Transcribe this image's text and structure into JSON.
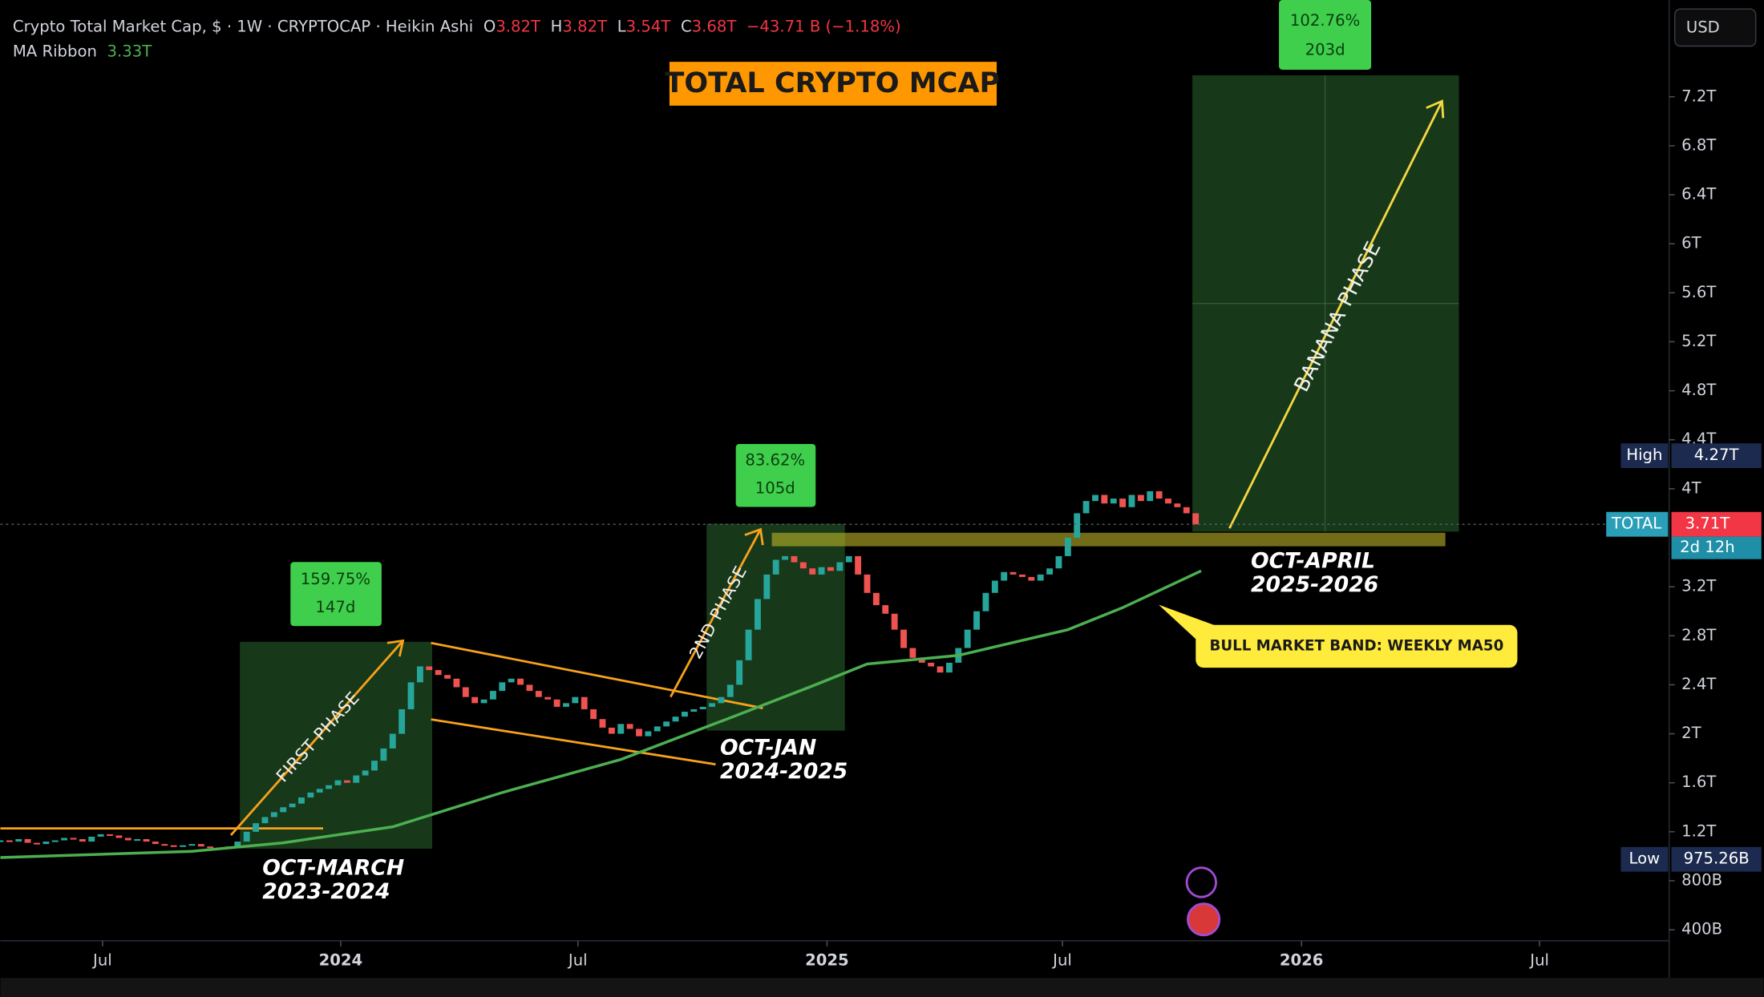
{
  "header": {
    "symbol": "Crypto Total Market Cap, $ · 1W · CRYPTOCAP · Heikin Ashi",
    "ohlc": [
      {
        "key": "O",
        "value": "3.82T"
      },
      {
        "key": "H",
        "value": "3.82T"
      },
      {
        "key": "L",
        "value": "3.54T"
      },
      {
        "key": "C",
        "value": "3.68T"
      }
    ],
    "change": "−43.71 B (−1.18%)",
    "indicator_value": "3.33T",
    "currency": "USD"
  },
  "chart_data": {
    "type": "candlestick",
    "title": "TOTAL CRYPTO MCAP",
    "x": [
      0,
      1,
      2,
      3,
      4,
      5,
      6,
      7,
      8,
      9,
      10,
      11,
      12,
      13,
      14,
      15,
      16,
      17,
      18,
      19,
      20,
      21,
      22,
      23,
      24,
      25,
      26,
      27,
      28,
      29,
      30,
      31,
      32,
      33,
      34,
      35,
      36,
      37,
      38,
      39,
      40,
      41,
      42,
      43,
      44,
      45,
      46,
      47,
      48,
      49,
      50,
      51,
      52,
      53,
      54,
      55,
      56,
      57,
      58,
      59,
      60,
      61,
      62,
      63,
      64,
      65,
      66,
      67,
      68,
      69,
      70,
      71,
      72,
      73,
      74,
      75,
      76,
      77,
      78,
      79,
      80,
      81,
      82,
      83,
      84,
      85,
      86,
      87,
      88,
      89,
      90,
      91,
      92,
      93,
      94,
      95,
      96,
      97,
      98,
      99,
      100,
      101,
      102,
      103,
      104,
      105,
      106,
      107,
      108,
      109,
      110,
      111,
      112,
      113,
      114,
      115,
      116,
      117,
      118,
      119,
      120,
      121,
      122,
      123,
      124,
      125,
      126,
      127,
      128,
      129,
      130,
      131
    ],
    "series": [
      {
        "name": "TOTAL",
        "color_up": "#26a69a",
        "color_down": "#ef5350",
        "values": [
          1.13,
          1.12,
          1.14,
          1.11,
          1.1,
          1.12,
          1.13,
          1.15,
          1.14,
          1.12,
          1.16,
          1.18,
          1.17,
          1.15,
          1.13,
          1.14,
          1.12,
          1.1,
          1.09,
          1.08,
          1.09,
          1.1,
          1.08,
          1.07,
          1.06,
          1.08,
          1.12,
          1.2,
          1.27,
          1.32,
          1.36,
          1.4,
          1.43,
          1.48,
          1.52,
          1.55,
          1.58,
          1.62,
          1.6,
          1.66,
          1.7,
          1.78,
          1.88,
          2.0,
          2.2,
          2.42,
          2.55,
          2.52,
          2.48,
          2.45,
          2.38,
          2.3,
          2.25,
          2.28,
          2.35,
          2.42,
          2.45,
          2.4,
          2.35,
          2.3,
          2.28,
          2.22,
          2.25,
          2.3,
          2.2,
          2.12,
          2.05,
          2.0,
          2.08,
          2.04,
          1.98,
          2.02,
          2.06,
          2.1,
          2.14,
          2.18,
          2.2,
          2.22,
          2.25,
          2.3,
          2.4,
          2.6,
          2.85,
          3.1,
          3.3,
          3.42,
          3.45,
          3.4,
          3.35,
          3.3,
          3.36,
          3.33,
          3.4,
          3.45,
          3.3,
          3.15,
          3.05,
          2.98,
          2.85,
          2.7,
          2.62,
          2.58,
          2.55,
          2.5,
          2.58,
          2.7,
          2.85,
          3.0,
          3.15,
          3.25,
          3.32,
          3.3,
          3.28,
          3.25,
          3.3,
          3.35,
          3.45,
          3.6,
          3.8,
          3.9,
          3.95,
          3.88,
          3.92,
          3.85,
          3.95,
          3.9,
          3.98,
          3.92,
          3.88,
          3.85,
          3.8,
          3.71
        ]
      },
      {
        "name": "MA Ribbon",
        "color": "#4caf50",
        "x": [
          0,
          21,
          31,
          43,
          55,
          68,
          80,
          89,
          95,
          105,
          117,
          123,
          131.6
        ],
        "values": [
          0.99,
          1.04,
          1.11,
          1.24,
          1.52,
          1.79,
          2.13,
          2.39,
          2.57,
          2.64,
          2.85,
          3.03,
          3.33
        ]
      }
    ],
    "xlim": [
      0,
      182.9
    ],
    "xticks": [
      {
        "value": 11.2,
        "label": "Jul"
      },
      {
        "value": 37.3,
        "label": "2024"
      },
      {
        "value": 63.3,
        "label": "Jul"
      },
      {
        "value": 90.6,
        "label": "2025"
      },
      {
        "value": 116.4,
        "label": "Jul"
      },
      {
        "value": 142.6,
        "label": "2026"
      },
      {
        "value": 168.7,
        "label": "Jul"
      }
    ],
    "ylim": [
      0.31,
      7.99
    ],
    "yticks": [
      {
        "value": 0.4,
        "label": "400B"
      },
      {
        "value": 0.8,
        "label": "800B"
      },
      {
        "value": 1.2,
        "label": "1.2T"
      },
      {
        "value": 1.6,
        "label": "1.6T"
      },
      {
        "value": 2,
        "label": "2T"
      },
      {
        "value": 2.4,
        "label": "2.4T"
      },
      {
        "value": 2.8,
        "label": "2.8T"
      },
      {
        "value": 3.2,
        "label": "3.2T"
      },
      {
        "value": 4,
        "label": "4T"
      },
      {
        "value": 4.4,
        "label": "4.4T"
      },
      {
        "value": 4.8,
        "label": "4.8T"
      },
      {
        "value": 5.2,
        "label": "5.2T"
      },
      {
        "value": 5.6,
        "label": "5.6T"
      },
      {
        "value": 6,
        "label": "6T"
      },
      {
        "value": 6.4,
        "label": "6.4T"
      },
      {
        "value": 6.8,
        "label": "6.8T"
      },
      {
        "value": 7.2,
        "label": "7.2T"
      }
    ],
    "price_labels": [
      {
        "name": "High",
        "value": 4.27,
        "label": "4.27T"
      },
      {
        "name": "Low",
        "value": 0.97526,
        "label": "975.26B"
      }
    ],
    "current": {
      "value": 3.71,
      "label": "3.71T",
      "countdown": "2d 12h"
    },
    "annotations": [
      {
        "gain": "159.75%",
        "duration": "147d",
        "phase": "FIRST PHASE",
        "period": "OCT-MARCH",
        "years": "2023-2024"
      },
      {
        "gain": "83.62%",
        "duration": "105d",
        "phase": "2ND PHASE",
        "period": "OCT-JAN",
        "years": "2024-2025"
      },
      {
        "gain": "102.76%",
        "duration": "203d",
        "phase": "BANANA PHASE",
        "period": "OCT-APRIL",
        "years": "2025-2026"
      }
    ],
    "callout": "BULL MARKET BAND: WEEKLY MA50"
  }
}
